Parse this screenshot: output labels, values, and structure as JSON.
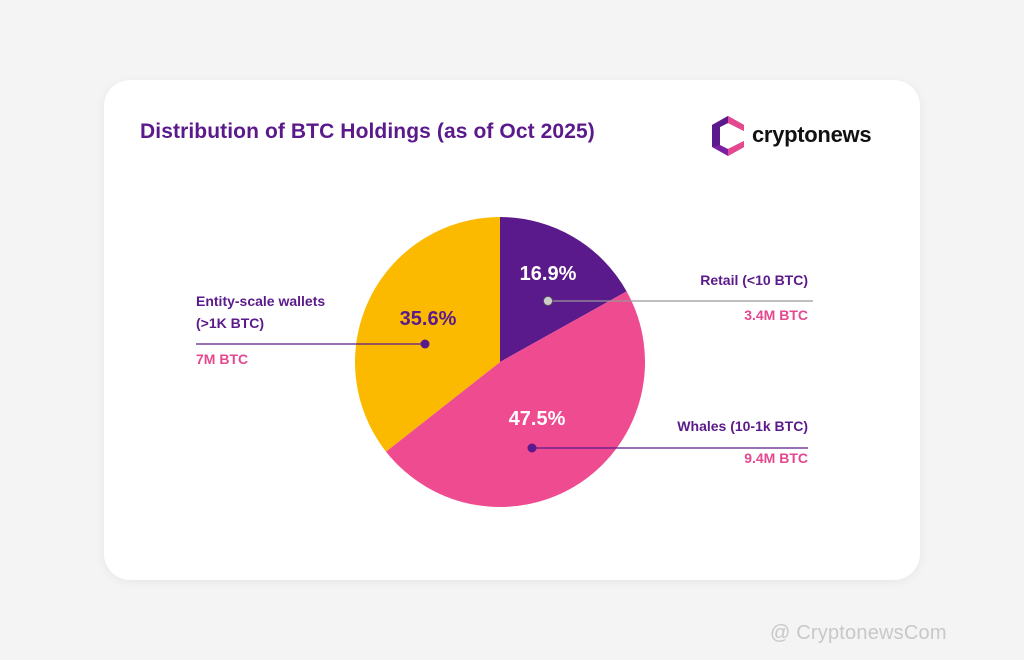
{
  "header": {
    "title": "Distribution of BTC Holdings (as of Oct 2025)",
    "logo_text": "cryptonews"
  },
  "colors": {
    "accent_purple": "#5b1a8b",
    "accent_pink": "#e6488f"
  },
  "chart_data": {
    "type": "pie",
    "title": "Distribution of BTC Holdings (as of Oct 2025)",
    "start_angle_deg": 0,
    "direction": "clockwise",
    "slices": [
      {
        "label_lines": [
          "Retail (<10 BTC)"
        ],
        "amount": "3.4M BTC",
        "value": 16.9,
        "pct_label": "16.9%",
        "color": "#5b1a8b",
        "pct_color": "#ffffff",
        "side": "right"
      },
      {
        "label_lines": [
          "Whales (10-1k BTC)"
        ],
        "amount": "9.4M BTC",
        "value": 47.5,
        "pct_label": "47.5%",
        "color": "#ef4b90",
        "pct_color": "#ffffff",
        "side": "right"
      },
      {
        "label_lines": [
          "Entity-scale wallets",
          "(>1K BTC)"
        ],
        "amount": "7M BTC",
        "value": 35.6,
        "pct_label": "35.6%",
        "color": "#fbb900",
        "pct_color": "#5b1a8b",
        "side": "left"
      }
    ],
    "label_color": "#5b1a8b",
    "amount_color": "#e6488f"
  },
  "watermark": "@ CryptonewsCom"
}
